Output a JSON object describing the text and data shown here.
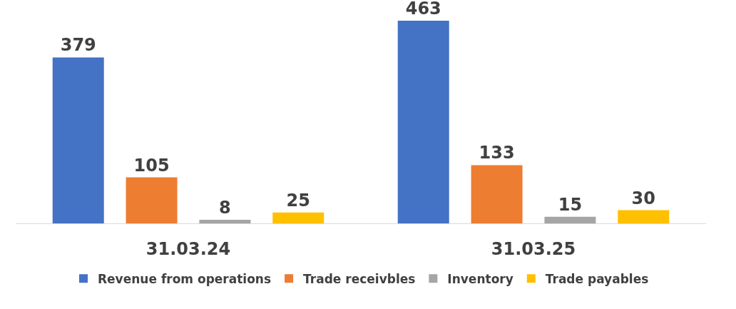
{
  "chart_data": {
    "type": "bar",
    "categories": [
      "31.03.24",
      "31.03.25"
    ],
    "series": [
      {
        "name": "Revenue from operations",
        "color": "#4472c4",
        "values": [
          379,
          463
        ]
      },
      {
        "name": "Trade receivbles",
        "color": "#ed7d31",
        "values": [
          105,
          133
        ]
      },
      {
        "name": "Inventory",
        "color": "#a5a5a5",
        "values": [
          8,
          15
        ]
      },
      {
        "name": "Trade payables",
        "color": "#ffc000",
        "values": [
          25,
          30
        ]
      }
    ],
    "tick_labels": "x",
    "data_labels": true,
    "grid": false,
    "legend": "bottom"
  }
}
